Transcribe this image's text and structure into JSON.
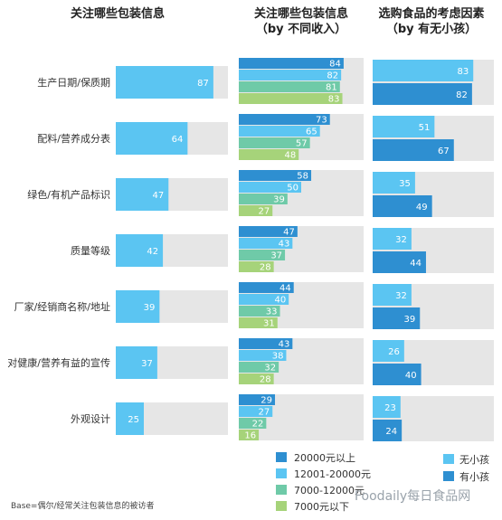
{
  "chart_data": [
    {
      "type": "bar",
      "title": "关注哪些包装信息",
      "categories": [
        "生产日期/保质期",
        "配料/营养成分表",
        "绿色/有机产品标识",
        "质量等级",
        "厂家/经销商名称/地址",
        "对健康/营养有益的宣传",
        "外观设计"
      ],
      "values": [
        87,
        64,
        47,
        42,
        39,
        37,
        25
      ],
      "xlim": [
        0,
        100
      ],
      "color": "#5bc5f2"
    },
    {
      "type": "bar",
      "title": "关注哪些包装信息",
      "subtitle": "（by 不同收入）",
      "categories": [
        "生产日期/保质期",
        "配料/营养成分表",
        "绿色/有机产品标识",
        "质量等级",
        "厂家/经销商名称/地址",
        "对健康/营养有益的宣传",
        "外观设计"
      ],
      "series": [
        {
          "name": "20000元以上",
          "color": "#2e8fd1",
          "values": [
            84,
            73,
            58,
            47,
            44,
            43,
            29
          ]
        },
        {
          "name": "12001-20000元",
          "color": "#5bc5f2",
          "values": [
            82,
            65,
            50,
            43,
            40,
            38,
            27
          ]
        },
        {
          "name": "7000-12000元",
          "color": "#6fcaa8",
          "values": [
            81,
            57,
            39,
            37,
            33,
            32,
            22
          ]
        },
        {
          "name": "7000元以下",
          "color": "#a6d37a",
          "values": [
            83,
            48,
            27,
            28,
            31,
            28,
            16
          ]
        }
      ],
      "xlim": [
        0,
        100
      ]
    },
    {
      "type": "bar",
      "title": "选购食品的考虑因素",
      "subtitle": "（by 有无小孩）",
      "categories": [
        "生产日期/保质期",
        "配料/营养成分表",
        "绿色/有机产品标识",
        "质量等级",
        "厂家/经销商名称/地址",
        "对健康/营养有益的宣传",
        "外观设计"
      ],
      "series": [
        {
          "name": "无小孩",
          "color": "#5bc5f2",
          "values": [
            83,
            51,
            35,
            32,
            32,
            26,
            23
          ]
        },
        {
          "name": "有小孩",
          "color": "#2e8fd1",
          "values": [
            82,
            67,
            49,
            44,
            39,
            40,
            24
          ]
        }
      ],
      "xlim": [
        0,
        100
      ]
    }
  ],
  "legend_income_labels": [
    "20000元以上",
    "12001-20000元",
    "7000-12000元",
    "7000元以下"
  ],
  "legend_child_labels": [
    "无小孩",
    "有小孩"
  ],
  "base_note": "Base=偶尔/经常关注包装信息的被访者",
  "watermark": "Foodaily每日食品网",
  "colors": {
    "track": "#e6e6e6",
    "dark_blue": "#2e8fd1",
    "light_blue": "#5bc5f2",
    "teal": "#6fcaa8",
    "light_green": "#a6d37a"
  }
}
